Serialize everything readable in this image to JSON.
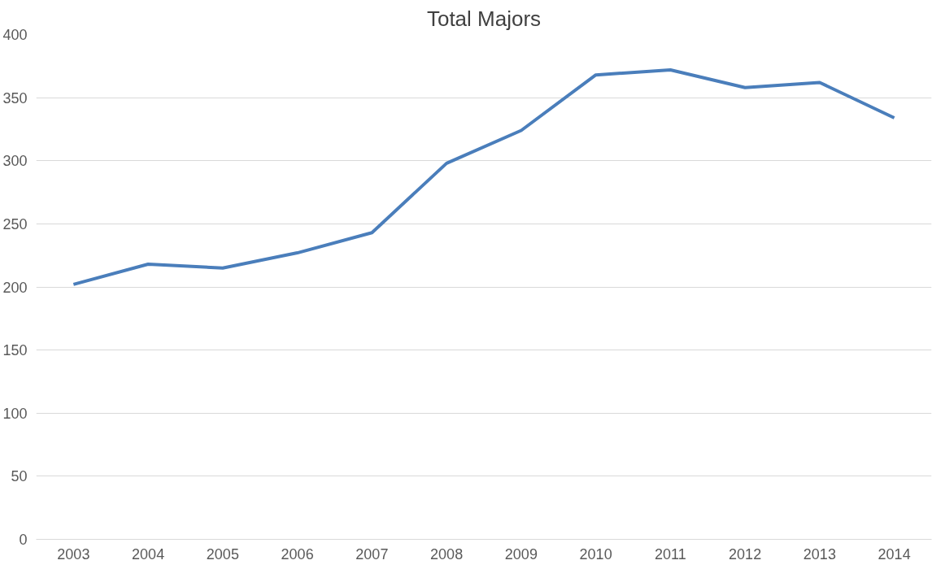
{
  "chart_data": {
    "type": "line",
    "title": "Total Majors",
    "categories": [
      "2003",
      "2004",
      "2005",
      "2006",
      "2007",
      "2008",
      "2009",
      "2010",
      "2011",
      "2012",
      "2013",
      "2014"
    ],
    "series": [
      {
        "color": "#4a7ebb",
        "values": [
          202,
          218,
          215,
          227,
          243,
          298,
          324,
          368,
          372,
          358,
          362,
          334
        ]
      }
    ],
    "ylim": [
      0,
      400
    ],
    "yticks": [
      0,
      50,
      100,
      150,
      200,
      250,
      300,
      350,
      400
    ],
    "grid": "y"
  }
}
